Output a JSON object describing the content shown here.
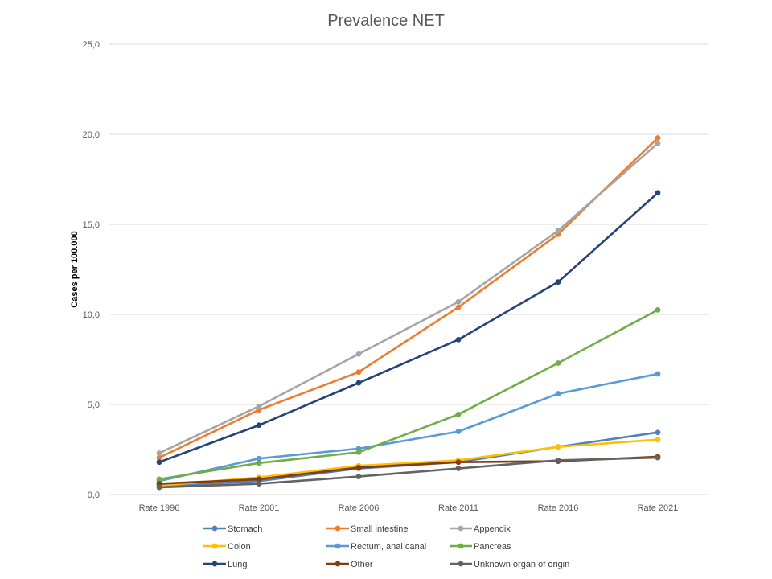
{
  "chart_data": {
    "type": "line",
    "title": "Prevalence NET",
    "xlabel": "",
    "ylabel": "Cases per 100.000",
    "categories": [
      "Rate 1996",
      "Rate 2001",
      "Rate 2006",
      "Rate 2011",
      "Rate 2016",
      "Rate 2021"
    ],
    "ylim": [
      0,
      25
    ],
    "yticks": [
      "0,0",
      "5,0",
      "10,0",
      "15,0",
      "20,0",
      "25,0"
    ],
    "grid": true,
    "legend_position": "bottom",
    "series": [
      {
        "name": "Stomach",
        "color": "#4f81bd",
        "values": [
          0.45,
          0.75,
          1.45,
          1.8,
          2.65,
          3.45
        ]
      },
      {
        "name": "Small intestine",
        "color": "#ed7d31",
        "values": [
          2.05,
          4.7,
          6.8,
          10.4,
          14.45,
          19.8
        ]
      },
      {
        "name": "Appendix",
        "color": "#a5a5a5",
        "values": [
          2.3,
          4.9,
          7.8,
          10.7,
          14.65,
          19.5
        ]
      },
      {
        "name": "Colon",
        "color": "#ffc000",
        "values": [
          0.5,
          0.95,
          1.6,
          1.9,
          2.65,
          3.05
        ]
      },
      {
        "name": "Rectum, anal canal",
        "color": "#5b9bd5",
        "values": [
          0.75,
          2.0,
          2.55,
          3.5,
          5.6,
          6.7
        ]
      },
      {
        "name": "Pancreas",
        "color": "#70ad47",
        "values": [
          0.85,
          1.75,
          2.35,
          4.45,
          7.3,
          10.25
        ]
      },
      {
        "name": "Lung",
        "color": "#264478",
        "values": [
          1.8,
          3.85,
          6.2,
          8.6,
          11.8,
          16.75
        ]
      },
      {
        "name": "Other",
        "color": "#843c0c",
        "values": [
          0.6,
          0.85,
          1.5,
          1.8,
          1.85,
          2.1
        ]
      },
      {
        "name": "Unknown organ of origin",
        "color": "#636363",
        "values": [
          0.4,
          0.6,
          1.0,
          1.45,
          1.9,
          2.05
        ]
      }
    ]
  }
}
